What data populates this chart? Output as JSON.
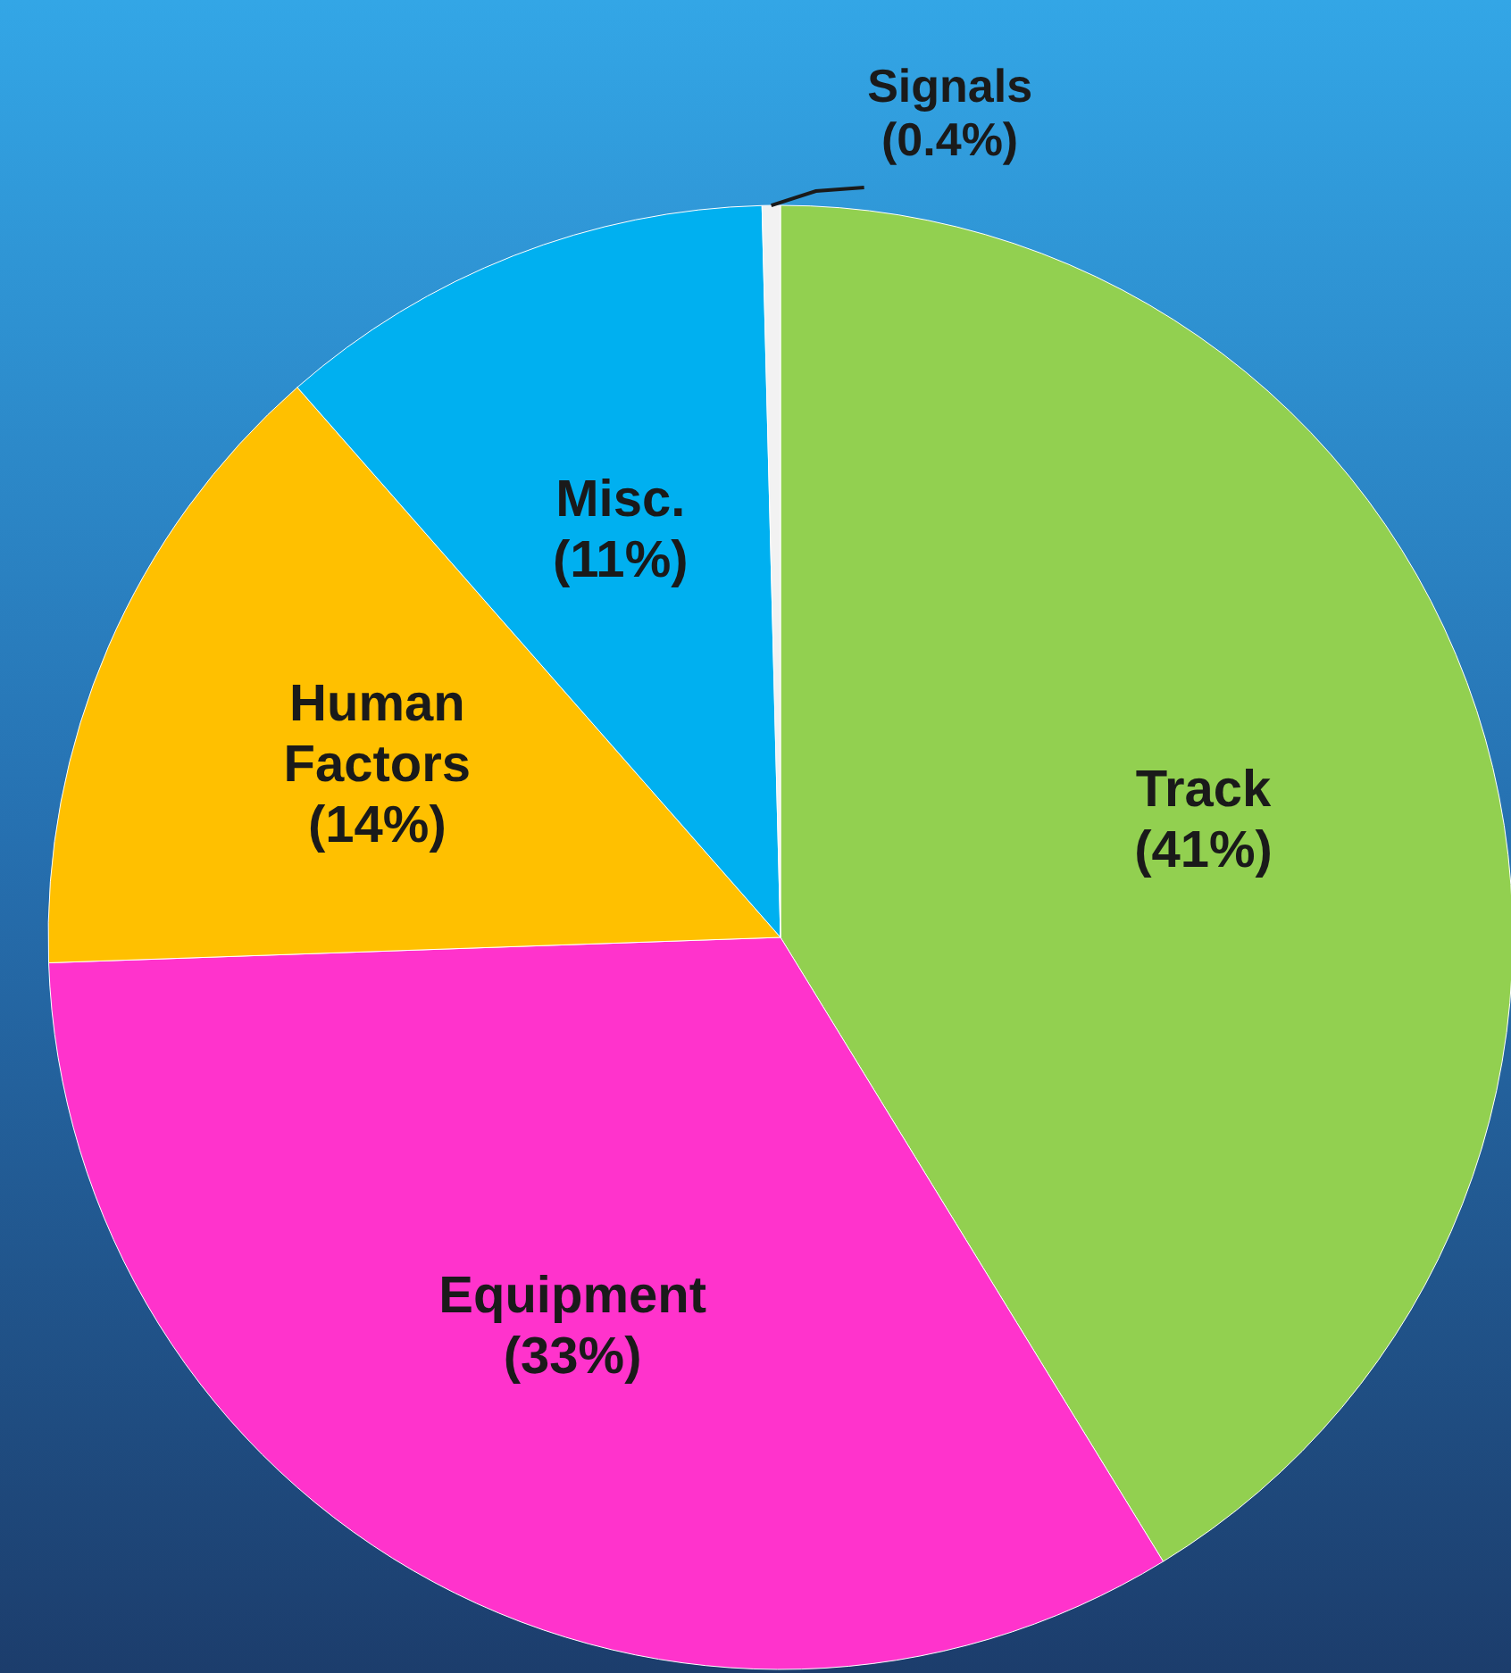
{
  "chart_data": {
    "type": "pie",
    "categories": [
      "Track",
      "Equipment",
      "Human Factors",
      "Misc.",
      "Signals"
    ],
    "values": [
      41,
      33,
      14,
      11,
      0.4
    ],
    "colors": [
      "#92d050",
      "#ff33cc",
      "#ffc000",
      "#00b0f0",
      "#f2f2f2"
    ],
    "value_labels": [
      "(41%)",
      "(33%)",
      "(14%)",
      "(11%)",
      "(0.4%)"
    ]
  }
}
